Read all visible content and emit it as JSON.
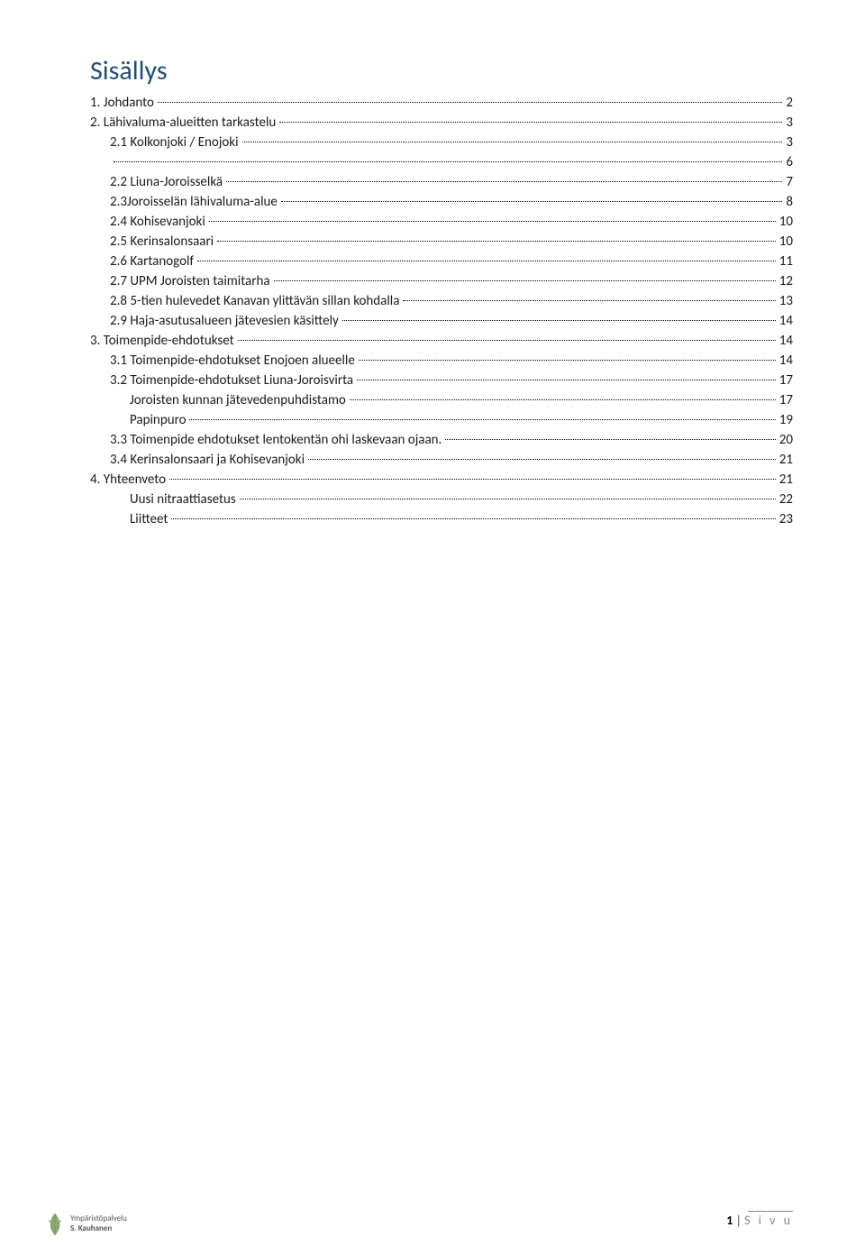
{
  "title": "Sisällys",
  "toc": [
    {
      "level": 0,
      "label": "1.      Johdanto",
      "page": "2"
    },
    {
      "level": 0,
      "label": "2. Lähivaluma-alueitten tarkastelu",
      "page": "3"
    },
    {
      "level": 1,
      "label": "2.1     Kolkonjoki / Enojoki",
      "page": "3"
    },
    {
      "level": 1,
      "label": "",
      "page": "6"
    },
    {
      "level": 1,
      "label": "2.2 Liuna-Joroisselkä",
      "page": "7"
    },
    {
      "level": 1,
      "label": "2.3Joroisselän lähivaluma-alue",
      "page": "8"
    },
    {
      "level": 1,
      "label": "2.4 Kohisevanjoki",
      "page": "10"
    },
    {
      "level": 1,
      "label": "2.5 Kerinsalonsaari",
      "page": "10"
    },
    {
      "level": 1,
      "label": "2.6 Kartanogolf",
      "page": "11"
    },
    {
      "level": 1,
      "label": "2.7 UPM Joroisten taimitarha",
      "page": "12"
    },
    {
      "level": 1,
      "label": "2.8 5-tien hulevedet Kanavan ylittävän sillan kohdalla",
      "page": "13"
    },
    {
      "level": 1,
      "label": "2.9 Haja-asutusalueen jätevesien käsittely",
      "page": "14"
    },
    {
      "level": 0,
      "label": "3. Toimenpide-ehdotukset",
      "page": "14"
    },
    {
      "level": 1,
      "label": "3.1 Toimenpide-ehdotukset Enojoen alueelle",
      "page": "14"
    },
    {
      "level": 1,
      "label": "3.2 Toimenpide-ehdotukset Liuna-Joroisvirta",
      "page": "17"
    },
    {
      "level": 2,
      "label": "Joroisten kunnan jätevedenpuhdistamo",
      "page": "17"
    },
    {
      "level": 2,
      "label": "Papinpuro",
      "page": "19"
    },
    {
      "level": 1,
      "label": "3.3 Toimenpide ehdotukset lentokentän ohi laskevaan ojaan.",
      "page": "20"
    },
    {
      "level": 1,
      "label": "3.4 Kerinsalonsaari ja Kohisevanjoki",
      "page": "21"
    },
    {
      "level": 0,
      "label": "4. Yhteenveto",
      "page": "21"
    },
    {
      "level": 2,
      "label": "Uusi nitraattiasetus",
      "page": "22"
    },
    {
      "level": 2,
      "label": "Liitteet",
      "page": "23"
    }
  ],
  "footer": {
    "page_number": "1",
    "page_label": "S i v u"
  },
  "logo": {
    "line1": "Ympäristöpalvelu",
    "line2": "S. Kauhanen"
  },
  "colors": {
    "title_color": "#1f4e79",
    "text_color": "#1a1a1a",
    "background": "#ffffff",
    "footer_text": "#888888"
  }
}
